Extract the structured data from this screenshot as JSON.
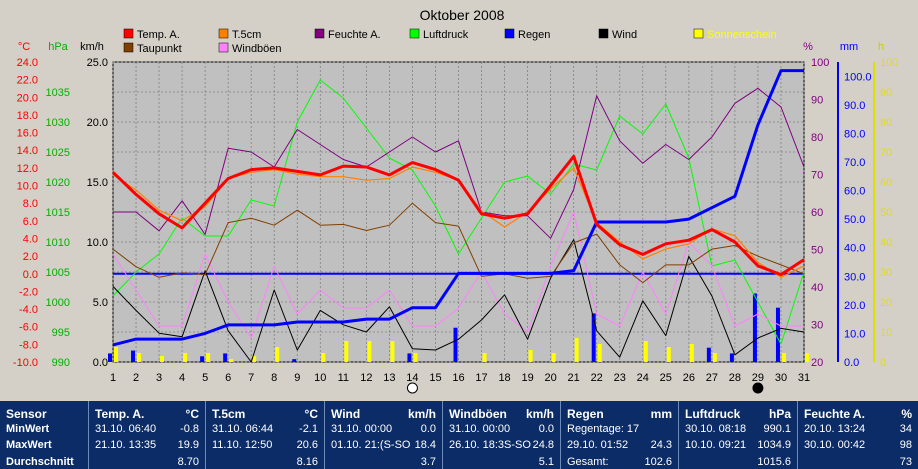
{
  "chart_data": {
    "type": "line",
    "title": "Oktober 2008",
    "x": [
      1,
      2,
      3,
      4,
      5,
      6,
      7,
      8,
      9,
      10,
      11,
      12,
      13,
      14,
      15,
      16,
      17,
      18,
      19,
      20,
      21,
      22,
      23,
      24,
      25,
      26,
      27,
      28,
      29,
      30,
      31
    ],
    "axes": {
      "temp": {
        "label": "°C",
        "ticks": [
          "24.0",
          "22.0",
          "20.0",
          "18.0",
          "16.0",
          "14.0",
          "12.0",
          "10.0",
          "8.0",
          "6.0",
          "4.0",
          "2.0",
          "0.0",
          "-2.0",
          "-4.0",
          "-6.0",
          "-8.0",
          "-10.0"
        ],
        "ylim": [
          -10,
          24
        ],
        "color": "#ff0000"
      },
      "pressure": {
        "label": "hPa",
        "ticks": [
          "1035",
          "1030",
          "1025",
          "1020",
          "1015",
          "1010",
          "1005",
          "1000",
          "995",
          "990"
        ],
        "ylim": [
          990,
          1040
        ],
        "color": "#00b000"
      },
      "wind": {
        "label": "km/h",
        "ticks": [
          "25.0",
          "20.0",
          "15.0",
          "10.0",
          "5.0",
          "0.0"
        ],
        "ylim": [
          0,
          25
        ],
        "color": "#000000"
      },
      "humidity": {
        "label": "%",
        "ticks": [
          "100",
          "90",
          "80",
          "70",
          "60",
          "50",
          "40",
          "30",
          "20"
        ],
        "ylim": [
          20,
          100
        ],
        "color": "#800080"
      },
      "rain": {
        "label": "mm",
        "ticks": [
          "100.0",
          "90.0",
          "80.0",
          "70.0",
          "60.0",
          "50.0",
          "40.0",
          "30.0",
          "20.0",
          "10.0",
          "0.0"
        ],
        "ylim": [
          0,
          105
        ],
        "color": "#0000ff"
      },
      "sun": {
        "label": "h",
        "ticks": [
          "100",
          "90",
          "80",
          "70",
          "60",
          "50",
          "40",
          "30",
          "20",
          "10",
          "0"
        ],
        "ylim": [
          0,
          100
        ],
        "color": "#ffff00"
      }
    },
    "legend": [
      {
        "name": "Temp. A.",
        "color": "#ff0000"
      },
      {
        "name": "T.5cm",
        "color": "#ff8000"
      },
      {
        "name": "Feuchte A.",
        "color": "#800080"
      },
      {
        "name": "Luftdruck",
        "color": "#00ff00"
      },
      {
        "name": "Regen",
        "color": "#0000ff"
      },
      {
        "name": "Wind",
        "color": "#000000"
      },
      {
        "name": "Sonnenschein",
        "color": "#ffff00"
      },
      {
        "name": "Taupunkt",
        "color": "#804000"
      },
      {
        "name": "Windböen",
        "color": "#ff80ff"
      }
    ],
    "series": [
      {
        "name": "Temp. A.",
        "axis": "temp",
        "values": [
          11.5,
          9.0,
          6.8,
          5.2,
          8.0,
          10.8,
          11.8,
          12.0,
          11.6,
          11.2,
          12.2,
          12.1,
          11.2,
          12.6,
          11.8,
          10.6,
          6.8,
          6.3,
          6.8,
          10.0,
          13.3,
          5.6,
          3.3,
          2.2,
          3.4,
          3.8,
          5.0,
          3.6,
          0.9,
          -0.1,
          1.6
        ]
      },
      {
        "name": "T.5cm",
        "axis": "temp",
        "values": [
          11.2,
          9.5,
          7.2,
          6.0,
          7.6,
          10.8,
          11.5,
          11.8,
          11.3,
          11.0,
          11.0,
          10.6,
          10.8,
          12.1,
          11.5,
          10.6,
          7.1,
          5.3,
          7.0,
          9.6,
          12.0,
          5.8,
          3.6,
          1.7,
          2.8,
          3.4,
          5.1,
          4.3,
          1.3,
          -0.4,
          0.9
        ]
      },
      {
        "name": "Taupunkt",
        "axis": "temp",
        "values": [
          2.8,
          0.8,
          -0.4,
          0.1,
          -0.1,
          5.8,
          6.3,
          5.5,
          7.2,
          5.5,
          5.6,
          4.9,
          5.5,
          8.0,
          5.8,
          5.4,
          -0.3,
          0.0,
          -0.5,
          -0.3,
          3.5,
          4.5,
          1.0,
          -1.0,
          1.0,
          1.0,
          2.8,
          3.2,
          2.0,
          1.0,
          0.0
        ]
      },
      {
        "name": "Feuchte A.",
        "axis": "humidity",
        "values": [
          60,
          60,
          55,
          63,
          54,
          77,
          76,
          72,
          82,
          78,
          74,
          72,
          76,
          80,
          76,
          79,
          60,
          59,
          59,
          53,
          66,
          91,
          79,
          73,
          78,
          74,
          80,
          89,
          93,
          88,
          72
        ]
      },
      {
        "name": "Luftdruck",
        "axis": "pressure",
        "values": [
          1001,
          1005,
          1008,
          1014,
          1011,
          1011,
          1017,
          1016,
          1030,
          1037,
          1034,
          1029,
          1024,
          1022,
          1016,
          1008,
          1014,
          1020,
          1021,
          1018,
          1023,
          1022,
          1031,
          1028,
          1033,
          1024,
          1006,
          1007,
          1000,
          993,
          1005
        ]
      },
      {
        "name": "Regen",
        "axis": "rain",
        "values": [
          6,
          8,
          8,
          8,
          10,
          13,
          13,
          13,
          14,
          14,
          14,
          15,
          15,
          19,
          19,
          31,
          31,
          31,
          31,
          31,
          32,
          49,
          49,
          49,
          49,
          50,
          54,
          58,
          83,
          102,
          102
        ]
      },
      {
        "name": "Wind",
        "axis": "wind",
        "values": [
          6.3,
          4.3,
          2.4,
          2.1,
          7.6,
          2.6,
          0.0,
          6.0,
          1.0,
          4.3,
          3.1,
          2.5,
          4.6,
          1.1,
          1.0,
          1.9,
          3.5,
          5.6,
          1.9,
          7.0,
          10.2,
          2.6,
          0.4,
          5.1,
          2.2,
          8.8,
          5.5,
          0.6,
          2.0,
          2.8,
          2.5
        ]
      },
      {
        "name": "Windböen",
        "axis": "wind",
        "values": [
          9.0,
          6.0,
          3.0,
          3.0,
          9.0,
          5.0,
          2.0,
          8.0,
          4.0,
          6.0,
          4.5,
          4.5,
          6.0,
          3.0,
          3.0,
          4.5,
          7.5,
          4.0,
          2.5,
          8.0,
          12.5,
          4.0,
          3.0,
          7.5,
          4.0,
          10.0,
          8.0,
          3.0,
          4.0,
          3.0,
          3.0
        ]
      }
    ],
    "bars": [
      {
        "name": "Sonnenschein",
        "axis": "sun",
        "values": [
          5,
          3,
          2,
          3,
          3,
          1,
          2,
          5,
          0,
          3,
          7,
          7,
          7,
          3,
          0,
          0,
          3,
          0,
          4,
          3,
          8,
          6,
          0,
          7,
          5,
          6,
          3,
          0,
          0,
          3,
          3
        ]
      },
      {
        "name": "Regen",
        "axis": "rain",
        "values": [
          3,
          4,
          0,
          0,
          2,
          3,
          0,
          0,
          1,
          0,
          0,
          0,
          0,
          3,
          0,
          12,
          0,
          0,
          0,
          0,
          0,
          17,
          0,
          0,
          0,
          0,
          5,
          3,
          24,
          19,
          0
        ]
      }
    ],
    "moon": {
      "new": 29,
      "full": 14
    }
  },
  "table": [
    {
      "head": "Sensor",
      "unit": "",
      "rows": [
        {
          "label": "MinWert",
          "value": ""
        },
        {
          "label": "MaxWert",
          "value": ""
        },
        {
          "label": "Durchschnitt",
          "value": ""
        }
      ]
    },
    {
      "head": "Temp. A.",
      "unit": "°C",
      "rows": [
        {
          "label": "31.10.  06:40",
          "value": "-0.8"
        },
        {
          "label": "21.10.  13:35",
          "value": "19.9"
        },
        {
          "label": "",
          "value": "8.70"
        }
      ]
    },
    {
      "head": "T.5cm",
      "unit": "°C",
      "rows": [
        {
          "label": "31.10.  06:44",
          "value": "-2.1"
        },
        {
          "label": "11.10.  12:50",
          "value": "20.6"
        },
        {
          "label": "",
          "value": "8.16"
        }
      ]
    },
    {
      "head": "Wind",
      "unit": "km/h",
      "rows": [
        {
          "label": "31.10.  00:00",
          "value": "0.0"
        },
        {
          "label": "01.10.  21:(S-SO",
          "value": "18.4"
        },
        {
          "label": "",
          "value": "3.7"
        }
      ]
    },
    {
      "head": "Windböen",
      "unit": "km/h",
      "rows": [
        {
          "label": "31.10.  00:00",
          "value": "0.0"
        },
        {
          "label": "26.10.  18:3S-SO",
          "value": "24.8"
        },
        {
          "label": "",
          "value": "5.1"
        }
      ]
    },
    {
      "head": "Regen",
      "unit": "mm",
      "rows": [
        {
          "label": "Regentage: 17",
          "value": ""
        },
        {
          "label": "29.10.  01:52",
          "value": "24.3"
        },
        {
          "label": "Gesamt:",
          "value": "102.6"
        }
      ]
    },
    {
      "head": "Luftdruck",
      "unit": "hPa",
      "rows": [
        {
          "label": "30.10.  08:18",
          "value": "990.1"
        },
        {
          "label": "10.10.  09:21",
          "value": "1034.9"
        },
        {
          "label": "",
          "value": "1015.6"
        }
      ]
    },
    {
      "head": "Feuchte A.",
      "unit": "%",
      "rows": [
        {
          "label": "20.10.  13:24",
          "value": "34"
        },
        {
          "label": "30.10.  00:42",
          "value": "98"
        },
        {
          "label": "",
          "value": "73"
        }
      ]
    }
  ]
}
